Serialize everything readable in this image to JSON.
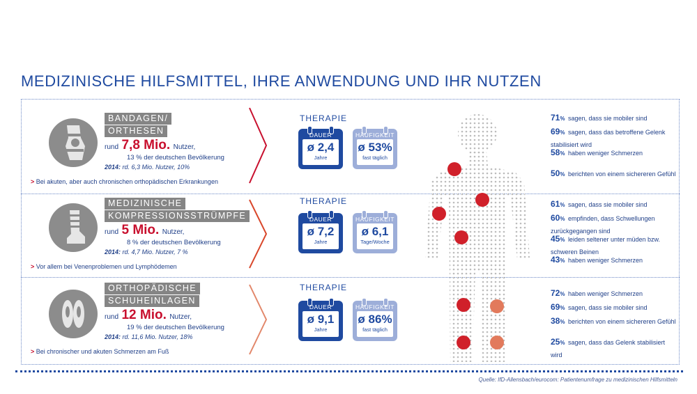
{
  "title": "MEDIZINISCHE HILFSMITTEL, IHRE ANWENDUNG UND IHR NUTZEN",
  "source": "Quelle: IfD-Allensbach/eurocom: Patientenumfrage zu medizinischen Hilfsmitteln",
  "sections": [
    {
      "tag_lines": [
        "BANDAGEN/",
        "ORTHESEN"
      ],
      "rund": "rund",
      "big_number": "7,8 Mio.",
      "users": "Nutzer,",
      "share": "13 % der deutschen Bevölkerung",
      "prev_year": "2014:",
      "prev_text": "rd. 6,3 Mio. Nutzer, 10%",
      "note_marker": ">",
      "note": "Bei akuten, aber auch chronischen orthopädischen Erkrankungen",
      "therapie": "THERAPIE",
      "dauer_label": "DAUER",
      "dauer_value": "ø 2,4",
      "dauer_unit": "Jahre",
      "haeufigkeit_label": "HÄUFIGKEIT",
      "haeufigkeit_value": "ø 53%",
      "haeufigkeit_unit": "fast täglich",
      "stats": [
        {
          "pct": "71",
          "text": "sagen, dass sie mobiler sind"
        },
        {
          "pct": "69",
          "text": "sagen, dass das betroffene Gelenk stabilisiert wird"
        },
        {
          "pct": "58",
          "text": "haben weniger Schmerzen"
        },
        {
          "pct": "50",
          "text": "berichten von einem sichereren Gefühl"
        }
      ]
    },
    {
      "tag_lines": [
        "MEDIZINISCHE",
        "KOMPRESSIONSSTRÜMPFE"
      ],
      "rund": "rund",
      "big_number": "5 Mio.",
      "users": "Nutzer,",
      "share": "8 % der deutschen Bevölkerung",
      "prev_year": "2014:",
      "prev_text": "rd. 4,7 Mio. Nutzer, 7 %",
      "note_marker": ">",
      "note": "Vor allem bei Venenproblemen und Lymphödemen",
      "therapie": "THERAPIE",
      "dauer_label": "DAUER",
      "dauer_value": "ø 7,2",
      "dauer_unit": "Jahre",
      "haeufigkeit_label": "HÄUFIGKEIT",
      "haeufigkeit_value": "ø 6,1",
      "haeufigkeit_unit": "Tage/Woche",
      "stats": [
        {
          "pct": "61",
          "text": "sagen, dass sie mobiler sind"
        },
        {
          "pct": "60",
          "text": "empfinden, dass Schwellungen zurückgegangen sind"
        },
        {
          "pct": "45",
          "text": "leiden seltener unter müden bzw. schweren Beinen"
        },
        {
          "pct": "43",
          "text": "haben weniger Schmerzen"
        }
      ]
    },
    {
      "tag_lines": [
        "ORTHOPÄDISCHE",
        "SCHUHEINLAGEN"
      ],
      "rund": "rund",
      "big_number": "12 Mio.",
      "users": "Nutzer,",
      "share": "19 % der deutschen Bevölkerung",
      "prev_year": "2014:",
      "prev_text": "rd. 11,6 Mio. Nutzer, 18%",
      "note_marker": ">",
      "note": "Bei chronischer und akuten Schmerzen am Fuß",
      "therapie": "THERAPIE",
      "dauer_label": "DAUER",
      "dauer_value": "ø 9,1",
      "dauer_unit": "Jahre",
      "haeufigkeit_label": "HÄUFIGKEIT",
      "haeufigkeit_value": "ø 86%",
      "haeufigkeit_unit": "fast täglich",
      "stats": [
        {
          "pct": "72",
          "text": "haben weniger Schmerzen"
        },
        {
          "pct": "69",
          "text": "sagen, dass sie mobiler sind"
        },
        {
          "pct": "38",
          "text": "berichten von einem sichereren Gefühl"
        },
        {
          "pct": "25",
          "text": "sagen, dass das Gelenk stabilisiert wird"
        }
      ]
    }
  ],
  "pct_symbol": "%",
  "colors": {
    "brand_blue": "#1f4aa0",
    "light_blue": "#9daed9",
    "accent_red": "#c8102e",
    "tag_gray": "#858585",
    "chevron_1": "#c8102e",
    "chevron_2": "#d9472b",
    "chevron_3": "#e2876a"
  },
  "icons": [
    "knee-brace-icon",
    "compression-stocking-icon",
    "insoles-icon",
    "calendar-icon",
    "chevron-right-icon",
    "body-silhouette-icon"
  ]
}
